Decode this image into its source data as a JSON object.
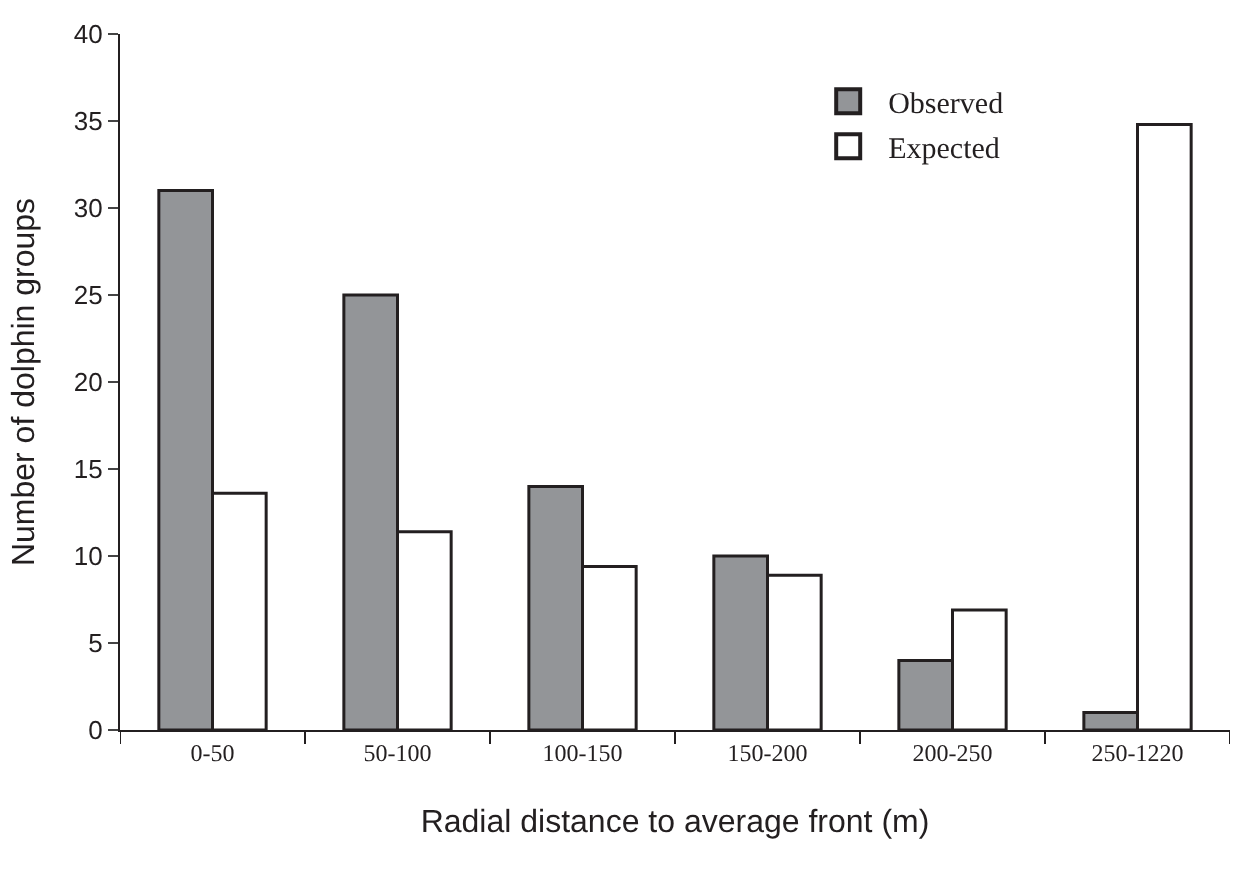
{
  "chart_data": {
    "type": "bar",
    "xlabel": "Radial distance to average front (m)",
    "ylabel": "Number of dolphin groups",
    "categories": [
      "0-50",
      "50-100",
      "100-150",
      "150-200",
      "200-250",
      "250-1220"
    ],
    "series": [
      {
        "name": "Observed",
        "color": "#939598",
        "values": [
          31,
          25,
          14,
          10,
          4,
          1
        ]
      },
      {
        "name": "Expected",
        "color": "#ffffff",
        "values": [
          13.6,
          11.4,
          9.4,
          8.9,
          6.9,
          34.8
        ]
      }
    ],
    "ylim": [
      0,
      40
    ],
    "yticks": [
      0,
      5,
      10,
      15,
      20,
      25,
      30,
      35,
      40
    ],
    "legend": "top right"
  }
}
